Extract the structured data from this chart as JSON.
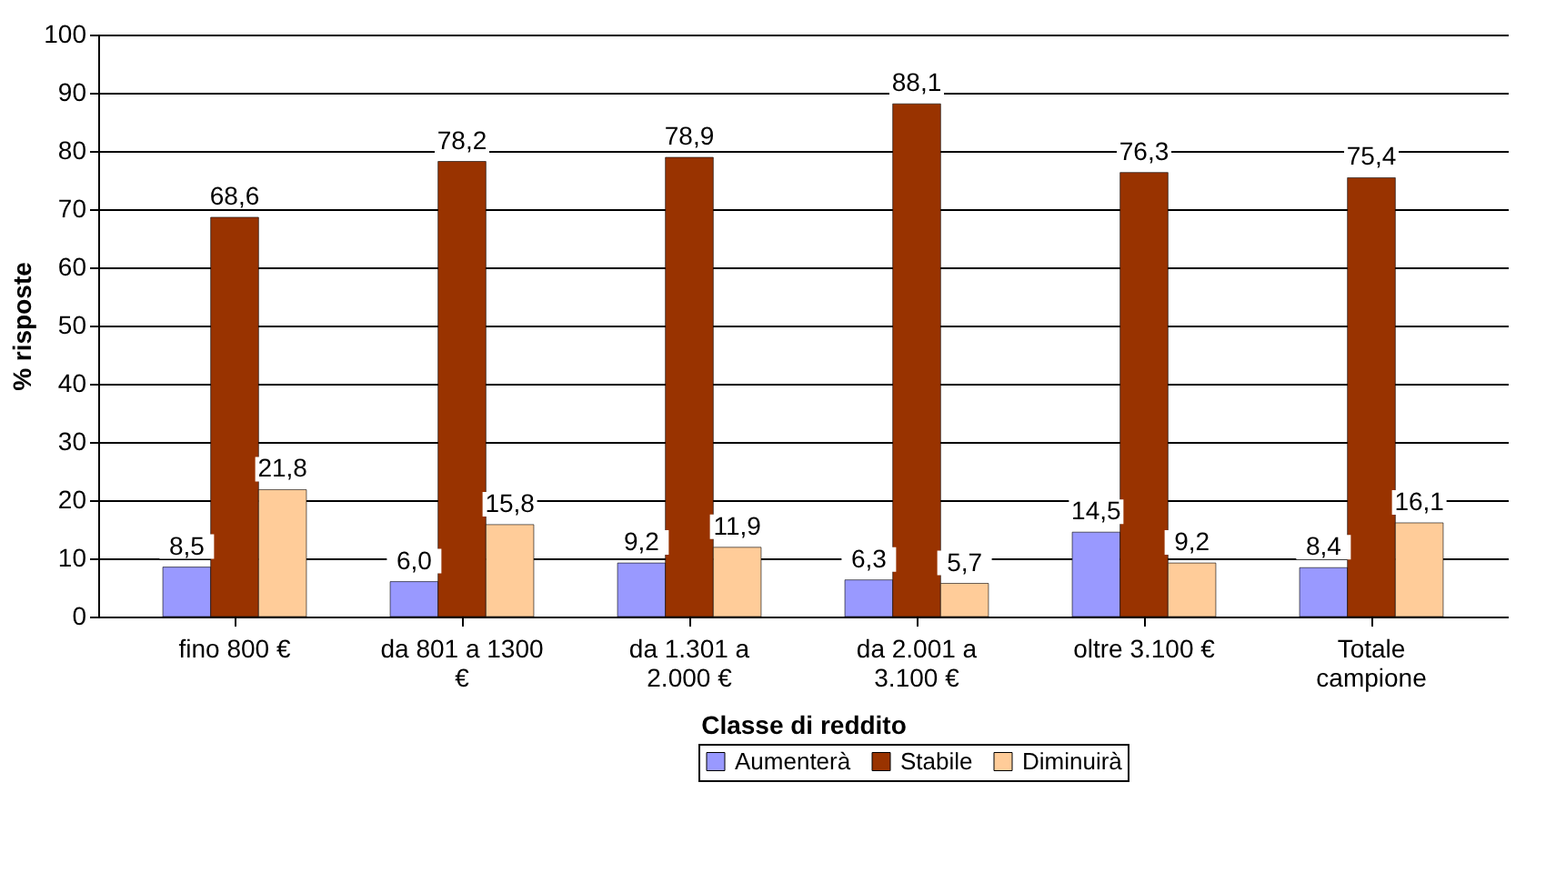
{
  "chart_data": {
    "type": "bar",
    "xlabel": "Classe di reddito",
    "ylabel": "% risposte",
    "categories": [
      "fino 800 €",
      "da 801 a 1300 €",
      "da 1.301 a 2.000 €",
      "da 2.001 a 3.100 €",
      "oltre 3.100 €",
      "Totale campione"
    ],
    "series": [
      {
        "name": "Aumenterà",
        "color": "#9999ff",
        "values": [
          8.5,
          6.0,
          9.2,
          6.3,
          14.5,
          8.4
        ],
        "value_labels": [
          "8,5",
          "6,0",
          "9,2",
          "6,3",
          "14,5",
          "8,4"
        ]
      },
      {
        "name": "Stabile",
        "color": "#993300",
        "values": [
          68.6,
          78.2,
          78.9,
          88.1,
          76.3,
          75.4
        ],
        "value_labels": [
          "68,6",
          "78,2",
          "78,9",
          "88,1",
          "76,3",
          "75,4"
        ]
      },
      {
        "name": "Diminuirà",
        "color": "#ffcc99",
        "values": [
          21.8,
          15.8,
          11.9,
          5.7,
          9.2,
          16.1
        ],
        "value_labels": [
          "21,8",
          "15,8",
          "11,9",
          "5,7",
          "9,2",
          "16,1"
        ]
      }
    ],
    "ylim": [
      0,
      100
    ],
    "yticks": [
      0,
      10,
      20,
      30,
      40,
      50,
      60,
      70,
      80,
      90,
      100
    ],
    "grid": "y",
    "legend": "bottom"
  }
}
